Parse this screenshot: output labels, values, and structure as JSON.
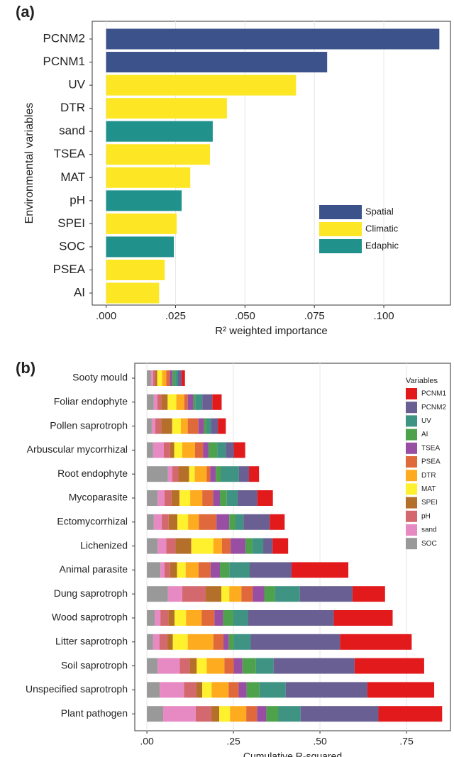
{
  "chart_data": [
    {
      "type": "bar",
      "panel_label": "(a)",
      "y_label": "Environmental variables",
      "x_label": "R² weighted importance",
      "categories": [
        "PCNM2",
        "PCNM1",
        "UV",
        "DTR",
        "sand",
        "TSEA",
        "MAT",
        "pH",
        "SPEI",
        "SOC",
        "PSEA",
        "AI"
      ],
      "series": [
        {
          "name": "Spatial",
          "color": "#3b528b",
          "values": [
            0.12,
            0.0796,
            null,
            null,
            null,
            null,
            null,
            null,
            null,
            null,
            null,
            null
          ]
        },
        {
          "name": "Climatic",
          "color": "#fde725",
          "values": [
            null,
            null,
            0.0684,
            0.0435,
            null,
            0.0374,
            0.0303,
            null,
            0.0254,
            null,
            0.0211,
            0.0191
          ]
        },
        {
          "name": "Edaphic",
          "color": "#21918c",
          "values": [
            null,
            null,
            null,
            null,
            0.0384,
            null,
            null,
            0.0272,
            null,
            0.0244,
            null,
            null
          ]
        }
      ],
      "xlim": [
        -0.005,
        0.124
      ],
      "xticks": [
        {
          "value": 0,
          "label": ".000"
        },
        {
          "value": 0.025,
          "label": ".025"
        },
        {
          "value": 0.05,
          "label": ".050"
        },
        {
          "value": 0.075,
          "label": ".075"
        },
        {
          "value": 0.1,
          "label": ".100"
        }
      ],
      "grid": true,
      "legend": "right"
    },
    {
      "type": "stacked_bar",
      "panel_label": "(b)",
      "x_label": "Cumulative R-squared",
      "legend_title": "Variables",
      "categories": [
        "Sooty mould",
        "Foliar endophyte",
        "Pollen saprotroph",
        "Arbuscular mycorrhizal",
        "Root endophyte",
        "Mycoparasite",
        "Ectomycorrhizal",
        "Lichenized",
        "Animal parasite",
        "Dung saprotroph",
        "Wood saprotroph",
        "Litter saprotroph",
        "Soil saprotroph",
        "Unspecified saprotroph",
        "Plant pathogen"
      ],
      "series": [
        {
          "name": "SOC",
          "color": "#999999",
          "values": [
            0.012,
            0.02,
            0.014,
            0.018,
            0.061,
            0.031,
            0.02,
            0.031,
            0.039,
            0.061,
            0.023,
            0.018,
            0.031,
            0.037,
            0.047
          ]
        },
        {
          "name": "sand",
          "color": "#e78ac3",
          "values": [
            0.006,
            0.01,
            0.01,
            0.031,
            0.012,
            0.02,
            0.023,
            0.025,
            0.012,
            0.041,
            0.016,
            0.018,
            0.064,
            0.07,
            0.094
          ]
        },
        {
          "name": "pH",
          "color": "#d4686f",
          "values": [
            0.006,
            0.012,
            0.018,
            0.018,
            0.018,
            0.02,
            0.02,
            0.027,
            0.016,
            0.068,
            0.023,
            0.023,
            0.029,
            0.035,
            0.045
          ]
        },
        {
          "name": "SPEI",
          "color": "#b46f2a",
          "values": [
            0.006,
            0.018,
            0.031,
            0.012,
            0.031,
            0.023,
            0.025,
            0.045,
            0.02,
            0.045,
            0.018,
            0.016,
            0.02,
            0.018,
            0.023
          ]
        },
        {
          "name": "MAT",
          "color": "#fff12e",
          "values": [
            0.014,
            0.025,
            0.025,
            0.023,
            0.016,
            0.031,
            0.031,
            0.064,
            0.025,
            0.023,
            0.033,
            0.043,
            0.029,
            0.027,
            0.031
          ]
        },
        {
          "name": "DTR",
          "color": "#ffab1f",
          "values": [
            0.012,
            0.023,
            0.02,
            0.037,
            0.035,
            0.035,
            0.031,
            0.025,
            0.037,
            0.035,
            0.045,
            0.074,
            0.051,
            0.049,
            0.047
          ]
        },
        {
          "name": "PSEA",
          "color": "#e0693b",
          "values": [
            0.01,
            0.01,
            0.031,
            0.023,
            0.01,
            0.031,
            0.051,
            0.025,
            0.035,
            0.033,
            0.037,
            0.029,
            0.027,
            0.029,
            0.031
          ]
        },
        {
          "name": "TSEA",
          "color": "#984ea3",
          "values": [
            0.008,
            0.016,
            0.016,
            0.016,
            0.016,
            0.02,
            0.037,
            0.043,
            0.027,
            0.033,
            0.025,
            0.016,
            0.025,
            0.023,
            0.027
          ]
        },
        {
          "name": "AI",
          "color": "#4fa24c",
          "values": [
            0.008,
            0.006,
            0.008,
            0.025,
            0.014,
            0.02,
            0.018,
            0.02,
            0.027,
            0.031,
            0.029,
            0.014,
            0.039,
            0.037,
            0.035
          ]
        },
        {
          "name": "UV",
          "color": "#3e9383",
          "values": [
            0.008,
            0.02,
            0.012,
            0.025,
            0.053,
            0.031,
            0.023,
            0.031,
            0.059,
            0.072,
            0.043,
            0.049,
            0.051,
            0.076,
            0.064
          ]
        },
        {
          "name": "PCNM2",
          "color": "#6a5f92",
          "values": [
            0.01,
            0.029,
            0.02,
            0.023,
            0.029,
            0.057,
            0.076,
            0.027,
            0.121,
            0.152,
            0.248,
            0.258,
            0.234,
            0.236,
            0.225
          ]
        },
        {
          "name": "PCNM1",
          "color": "#e31a1c",
          "values": [
            0.01,
            0.027,
            0.023,
            0.033,
            0.029,
            0.045,
            0.043,
            0.045,
            0.164,
            0.094,
            0.17,
            0.207,
            0.201,
            0.193,
            0.184
          ]
        }
      ],
      "xlim": [
        -0.035,
        0.877
      ],
      "xticks": [
        {
          "value": 0,
          "label": ".00"
        },
        {
          "value": 0.25,
          "label": ".25"
        },
        {
          "value": 0.5,
          "label": ".50"
        },
        {
          "value": 0.75,
          "label": ".75"
        }
      ],
      "grid": true,
      "legend": "top-right"
    }
  ]
}
